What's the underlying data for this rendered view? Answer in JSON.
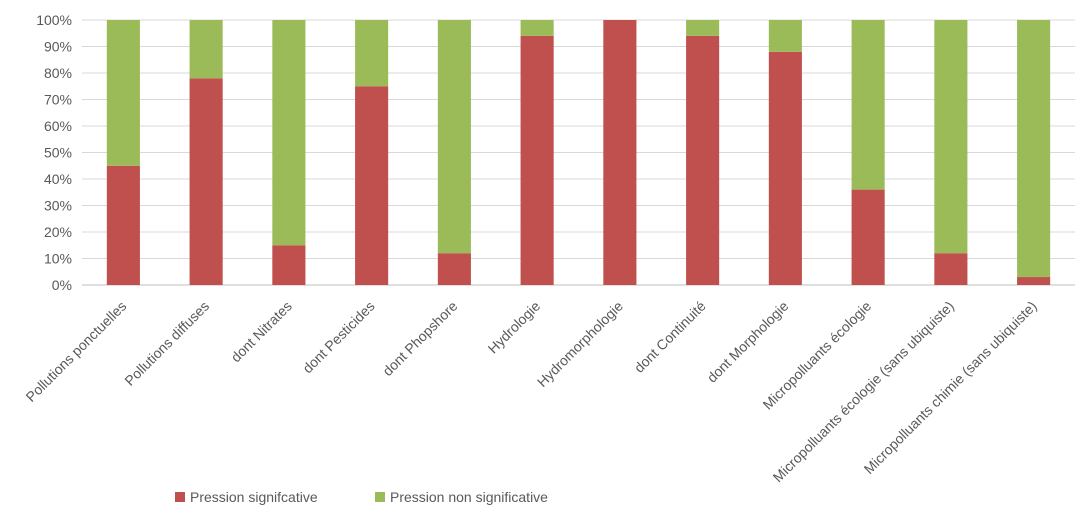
{
  "chart_data": {
    "type": "bar",
    "stacked": true,
    "percent_stacked": true,
    "title": "",
    "xlabel": "",
    "ylabel": "",
    "ylim": [
      0,
      100
    ],
    "yticks": [
      "0%",
      "10%",
      "20%",
      "30%",
      "40%",
      "50%",
      "60%",
      "70%",
      "80%",
      "90%",
      "100%"
    ],
    "grid": true,
    "legend_position": "bottom",
    "categories": [
      "Pollutions ponctuelles",
      "Pollutions diffuses",
      "dont Nitrates",
      "dont Pesticides",
      "dont Phopshore",
      "Hydrologie",
      "Hydromorphologie",
      "dont Continuité",
      "dont Morphologie",
      "Micropolluants écologie",
      "Micropolluants écologie (sans ubiquiste)",
      "Micropolluants chimie (sans ubiquiste)"
    ],
    "series": [
      {
        "name": "Pression signifcative",
        "color": "#c0504d",
        "values": [
          45,
          78,
          15,
          75,
          12,
          94,
          100,
          94,
          88,
          36,
          12,
          3
        ]
      },
      {
        "name": "Pression non significative",
        "color": "#9bbb59",
        "values": [
          55,
          22,
          85,
          25,
          88,
          6,
          0,
          6,
          12,
          64,
          88,
          97
        ]
      }
    ]
  }
}
